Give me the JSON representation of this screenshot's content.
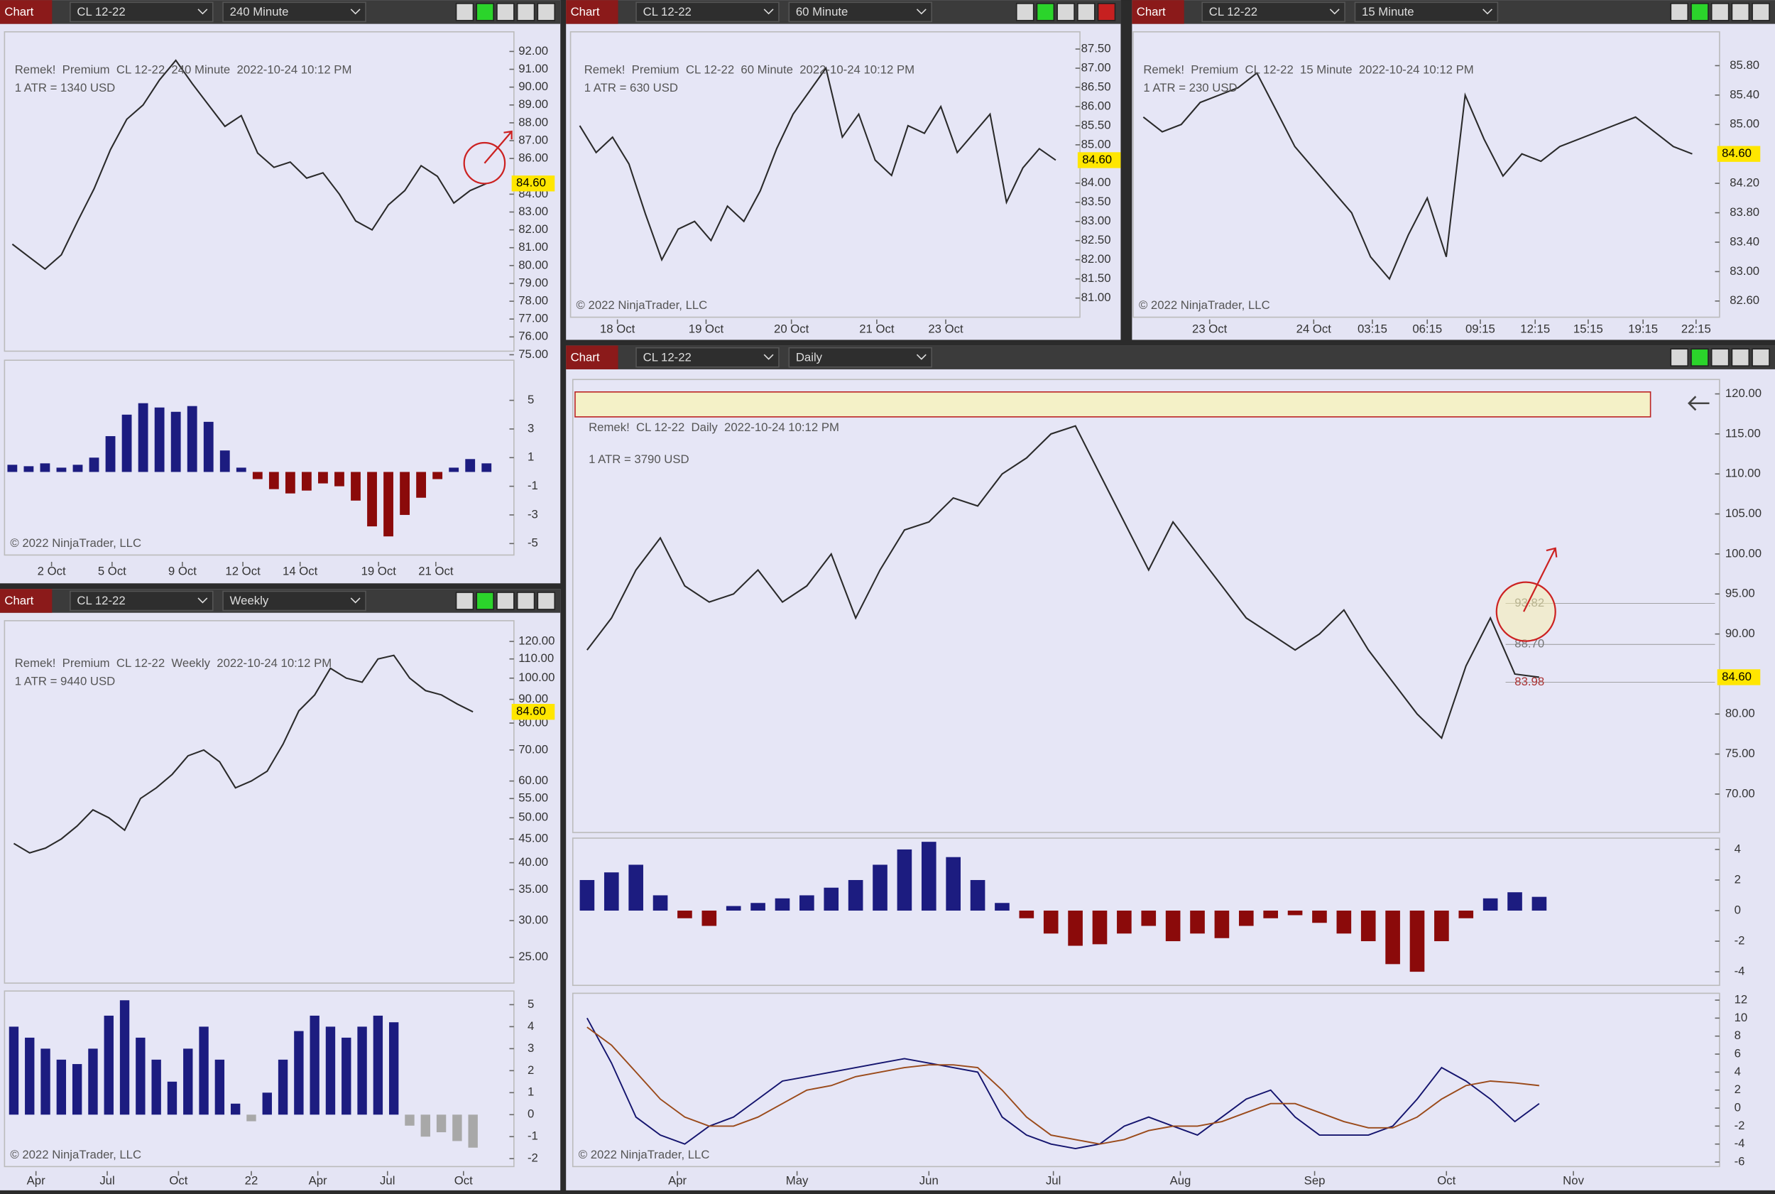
{
  "windows": [
    {
      "tab": "Chart",
      "instrument": "CL 12-22",
      "interval": "240 Minute",
      "header": "Remek!  Premium  CL 12-22  240 Minute  2022-10-24 10:12 PM",
      "atr": "1 ATR = 1340 USD",
      "copyright": "© 2022 NinjaTrader, LLC",
      "chart_data": {
        "type": "line",
        "color": "#2a2a2a",
        "xlim": [
          -0.2,
          30.4
        ],
        "ylim": [
          75.2,
          93.1
        ],
        "yticks": [
          {
            "value": 92,
            "label": "92.00"
          },
          {
            "value": 91,
            "label": "91.00"
          },
          {
            "value": 90,
            "label": "90.00"
          },
          {
            "value": 89,
            "label": "89.00"
          },
          {
            "value": 88,
            "label": "88.00"
          },
          {
            "value": 87,
            "label": "87.00"
          },
          {
            "value": 86,
            "label": "86.00"
          },
          {
            "value": 84,
            "label": "84.00"
          },
          {
            "value": 83,
            "label": "83.00"
          },
          {
            "value": 82,
            "label": "82.00"
          },
          {
            "value": 81,
            "label": "81.00"
          },
          {
            "value": 80,
            "label": "80.00"
          },
          {
            "value": 79,
            "label": "79.00"
          },
          {
            "value": 78,
            "label": "78.00"
          },
          {
            "value": 77,
            "label": "77.00"
          },
          {
            "value": 76,
            "label": "76.00"
          },
          {
            "value": 75,
            "label": "75.00"
          }
        ],
        "xticks": [
          {
            "value": 2.4,
            "label": "2 Oct"
          },
          {
            "value": 6.1,
            "label": "5 Oct"
          },
          {
            "value": 10.4,
            "label": "9 Oct"
          },
          {
            "value": 14.1,
            "label": "12 Oct"
          },
          {
            "value": 17.6,
            "label": "14 Oct"
          },
          {
            "value": 22.4,
            "label": "19 Oct"
          },
          {
            "value": 25.9,
            "label": "21 Oct"
          }
        ],
        "values": [
          81.2,
          80.5,
          79.8,
          80.6,
          82.5,
          84.3,
          86.5,
          88.2,
          89.0,
          90.4,
          91.5,
          90.2,
          89.0,
          87.8,
          88.4,
          86.3,
          85.5,
          85.8,
          84.9,
          85.2,
          84.0,
          82.5,
          82.0,
          83.4,
          84.2,
          85.6,
          85.0,
          83.5,
          84.2,
          84.6
        ],
        "last_price": {
          "value": 84.6,
          "label": "84.60"
        },
        "oscillators": [
          {
            "type": "histogram",
            "ylim": [
              -5.8,
              7.8
            ],
            "yticks": [
              5,
              3,
              1,
              -1,
              -3,
              -5
            ],
            "color": "#1c1c80",
            "negative_color": "#8b0a0a",
            "values": [
              0.5,
              0.4,
              0.6,
              0.3,
              0.5,
              1,
              2.5,
              4,
              4.8,
              4.5,
              4.2,
              4.6,
              3.5,
              1.5,
              0.3,
              -0.5,
              -1.2,
              -1.5,
              -1.3,
              -0.8,
              -1.0,
              -2,
              -3.8,
              -4.5,
              -3,
              -1.8,
              -0.5,
              0.3,
              0.9,
              0.6
            ]
          }
        ]
      }
    },
    {
      "tab": "Chart",
      "instrument": "CL 12-22",
      "interval": "60 Minute",
      "header": "Remek!  Premium  CL 12-22  60 Minute  2022-10-24 10:12 PM",
      "atr": "1 ATR = 630 USD",
      "copyright": "© 2022 NinjaTrader, LLC",
      "chart_data": {
        "type": "line",
        "color": "#2a2a2a",
        "xlim": [
          -0.28,
          30.2
        ],
        "ylim": [
          80.5,
          87.95
        ],
        "yticks": [
          {
            "value": 87.5,
            "label": "87.50"
          },
          {
            "value": 87,
            "label": "87.00"
          },
          {
            "value": 86.5,
            "label": "86.50"
          },
          {
            "value": 86,
            "label": "86.00"
          },
          {
            "value": 85.5,
            "label": "85.50"
          },
          {
            "value": 85,
            "label": "85.00"
          },
          {
            "value": 84,
            "label": "84.00"
          },
          {
            "value": 83.5,
            "label": "83.50"
          },
          {
            "value": 83,
            "label": "83.00"
          },
          {
            "value": 82.5,
            "label": "82.50"
          },
          {
            "value": 82,
            "label": "82.00"
          },
          {
            "value": 81.5,
            "label": "81.50"
          },
          {
            "value": 81,
            "label": "81.00"
          }
        ],
        "xticks": [
          {
            "value": 2.3,
            "label": "18 Oct"
          },
          {
            "value": 7.7,
            "label": "19 Oct"
          },
          {
            "value": 12.9,
            "label": "20 Oct"
          },
          {
            "value": 18.1,
            "label": "21 Oct"
          },
          {
            "value": 22.3,
            "label": "23 Oct"
          }
        ],
        "values": [
          85.5,
          84.8,
          85.2,
          84.5,
          83.2,
          82.0,
          82.8,
          83.0,
          82.5,
          83.4,
          83.0,
          83.8,
          84.9,
          85.8,
          86.4,
          87.0,
          85.2,
          85.8,
          84.6,
          84.2,
          85.5,
          85.3,
          86.0,
          84.8,
          85.3,
          85.8,
          83.5,
          84.4,
          84.9,
          84.6
        ],
        "last_price": {
          "value": 84.6,
          "label": "84.60"
        },
        "oscillators": []
      }
    },
    {
      "tab": "Chart",
      "instrument": "CL 12-22",
      "interval": "15 Minute",
      "header": "Remek!  Premium  CL 12-22  15 Minute  2022-10-24 10:12 PM",
      "atr": "1 ATR = 230 USD",
      "copyright": "© 2022 NinjaTrader, LLC",
      "chart_data": {
        "type": "line",
        "color": "#2a2a2a",
        "xlim": [
          -0.3,
          30.2
        ],
        "ylim": [
          82.38,
          86.26
        ],
        "yticks": [
          {
            "value": 85.8,
            "label": "85.80"
          },
          {
            "value": 85.4,
            "label": "85.40"
          },
          {
            "value": 85,
            "label": "85.00"
          },
          {
            "value": 84.2,
            "label": "84.20"
          },
          {
            "value": 83.8,
            "label": "83.80"
          },
          {
            "value": 83.4,
            "label": "83.40"
          },
          {
            "value": 83,
            "label": "83.00"
          },
          {
            "value": 82.6,
            "label": "82.60"
          }
        ],
        "xticks": [
          {
            "value": 3.5,
            "label": "23 Oct"
          },
          {
            "value": 9.0,
            "label": "24 Oct"
          },
          {
            "value": 12.1,
            "label": "03:15"
          },
          {
            "value": 15.0,
            "label": "06:15"
          },
          {
            "value": 17.8,
            "label": "09:15"
          },
          {
            "value": 20.7,
            "label": "12:15"
          },
          {
            "value": 23.5,
            "label": "15:15"
          },
          {
            "value": 26.4,
            "label": "19:15"
          },
          {
            "value": 29.2,
            "label": "22:15"
          }
        ],
        "values": [
          85.1,
          84.9,
          85.0,
          85.3,
          85.4,
          85.5,
          85.7,
          85.2,
          84.7,
          84.4,
          84.1,
          83.8,
          83.2,
          82.9,
          83.5,
          84.0,
          83.2,
          85.4,
          84.8,
          84.3,
          84.6,
          84.5,
          84.7,
          84.8,
          84.9,
          85.0,
          85.1,
          84.9,
          84.7,
          84.6
        ],
        "last_price": {
          "value": 84.6,
          "label": "84.60"
        },
        "oscillators": []
      }
    },
    {
      "tab": "Chart",
      "instrument": "CL 12-22",
      "interval": "Weekly",
      "header": "Remek!  Premium  CL 12-22  Weekly  2022-10-24 10:12 PM",
      "atr": "1 ATR = 9440 USD",
      "copyright": "© 2022 NinjaTrader, LLC",
      "chart_data": {
        "type": "line",
        "color": "#2a2a2a",
        "log_scale": true,
        "xlim": [
          -0.3,
          31.3
        ],
        "ylim": [
          22,
          133
        ],
        "yticks": [
          {
            "value": 120,
            "label": "120.00"
          },
          {
            "value": 110,
            "label": "110.00"
          },
          {
            "value": 100,
            "label": "100.00"
          },
          {
            "value": 90,
            "label": "90.00"
          },
          {
            "value": 80,
            "label": "80.00"
          },
          {
            "value": 70,
            "label": "70.00"
          },
          {
            "value": 60,
            "label": "60.00"
          },
          {
            "value": 55,
            "label": "55.00"
          },
          {
            "value": 50,
            "label": "50.00"
          },
          {
            "value": 45,
            "label": "45.00"
          },
          {
            "value": 40,
            "label": "40.00"
          },
          {
            "value": 35,
            "label": "35.00"
          },
          {
            "value": 30,
            "label": "30.00"
          },
          {
            "value": 25,
            "label": "25.00"
          }
        ],
        "xticks": [
          {
            "value": 1.4,
            "label": "Apr"
          },
          {
            "value": 5.9,
            "label": "Jul"
          },
          {
            "value": 10.4,
            "label": "Oct"
          },
          {
            "value": 15,
            "label": "22"
          },
          {
            "value": 19.2,
            "label": "Apr"
          },
          {
            "value": 23.6,
            "label": "Jul"
          },
          {
            "value": 28.4,
            "label": "Oct"
          }
        ],
        "values": [
          44,
          42,
          43,
          45,
          48,
          52,
          50,
          47,
          55,
          58,
          62,
          68,
          70,
          66,
          58,
          60,
          63,
          72,
          85,
          92,
          105,
          100,
          98,
          110,
          112,
          100,
          94,
          92,
          88,
          84.6
        ],
        "last_price": {
          "value": 84.6,
          "label": "84.60"
        },
        "oscillators": [
          {
            "type": "histogram",
            "ylim": [
              -2.36,
              5.62
            ],
            "yticks": [
              5,
              4,
              3,
              2,
              1,
              0,
              -1,
              -2
            ],
            "color": "#1c1c80",
            "negative_color": "#a8a8a8",
            "values": [
              4,
              3.5,
              3,
              2.5,
              2.3,
              3,
              4.5,
              5.2,
              3.5,
              2.5,
              1.5,
              3,
              4,
              2.5,
              0.5,
              -0.3,
              1,
              2.5,
              3.8,
              4.5,
              4,
              3.5,
              4,
              4.5,
              4.2,
              -0.5,
              -1,
              -0.8,
              -1.2,
              -1.5
            ]
          }
        ]
      }
    },
    {
      "tab": "Chart",
      "instrument": "CL 12-22",
      "interval": "Daily",
      "header": "Remek!  CL 12-22  Daily  2022-10-24 10:12 PM",
      "atr": "1 ATR = 3790 USD",
      "copyright": "© 2022 NinjaTrader, LLC",
      "chart_data": {
        "type": "line",
        "color": "#2a2a2a",
        "xlim": [
          -0.4,
          46.2
        ],
        "ylim": [
          65.2,
          121.8
        ],
        "yticks": [
          {
            "value": 120,
            "label": "120.00"
          },
          {
            "value": 115,
            "label": "115.00"
          },
          {
            "value": 110,
            "label": "110.00"
          },
          {
            "value": 105,
            "label": "105.00"
          },
          {
            "value": 100,
            "label": "100.00"
          },
          {
            "value": 95,
            "label": "95.00"
          },
          {
            "value": 90,
            "label": "90.00"
          },
          {
            "value": 80,
            "label": "80.00"
          },
          {
            "value": 75,
            "label": "75.00"
          },
          {
            "value": 70,
            "label": "70.00"
          }
        ],
        "xticks": [
          {
            "value": 3.7,
            "label": "Apr"
          },
          {
            "value": 8.6,
            "label": "May"
          },
          {
            "value": 14,
            "label": "Jun"
          },
          {
            "value": 19.1,
            "label": "Jul"
          },
          {
            "value": 24.3,
            "label": "Aug"
          },
          {
            "value": 29.8,
            "label": "Sep"
          },
          {
            "value": 35.2,
            "label": "Oct"
          },
          {
            "value": 40.4,
            "label": "Nov"
          }
        ],
        "values": [
          88,
          92,
          98,
          102,
          96,
          94,
          95,
          98,
          94,
          96,
          100,
          92,
          98,
          103,
          104,
          107,
          106,
          110,
          112,
          115,
          116,
          110,
          104,
          98,
          104,
          100,
          96,
          92,
          90,
          88,
          90,
          93,
          88,
          84,
          80,
          77,
          86,
          92,
          85,
          84.6
        ],
        "last_price": {
          "value": 84.6,
          "label": "84.60"
        },
        "levels": [
          {
            "value": 93.82,
            "label": "93.82"
          },
          {
            "value": 88.7,
            "label": "88.70"
          },
          {
            "value": 83.98,
            "label": "83.98"
          }
        ],
        "oscillators": [
          {
            "type": "histogram",
            "ylim": [
              -4.89,
              4.74
            ],
            "yticks": [
              4,
              2,
              0,
              -2,
              -4
            ],
            "color": "#1c1c80",
            "negative_color": "#8b0a0a",
            "values": [
              2,
              2.5,
              3,
              1,
              -0.5,
              -1,
              0.3,
              0.5,
              0.8,
              1,
              1.5,
              2,
              3,
              4,
              4.5,
              3.5,
              2,
              0.5,
              -0.5,
              -1.5,
              -2.3,
              -2.2,
              -1.5,
              -1,
              -2,
              -1.5,
              -1.8,
              -1,
              -0.5,
              -0.3,
              -0.8,
              -1.5,
              -2,
              -3.5,
              -4,
              -2,
              -0.5,
              0.8,
              1.2,
              0.9
            ]
          },
          {
            "type": "line",
            "ylim": [
              -6.5,
              12.76
            ],
            "yticks": [
              12,
              10,
              8,
              6,
              4,
              2,
              0,
              -2,
              -4,
              -6
            ],
            "series": [
              {
                "color": "#14146e",
                "values": [
                  10,
                  5,
                  -1,
                  -3,
                  -4,
                  -2,
                  -1,
                  1,
                  3,
                  3.5,
                  4,
                  4.5,
                  5,
                  5.5,
                  5,
                  4.5,
                  4,
                  -1,
                  -3,
                  -4,
                  -4.5,
                  -4,
                  -2,
                  -1,
                  -2,
                  -3,
                  -1,
                  1,
                  2,
                  -1,
                  -3,
                  -3,
                  -3,
                  -2,
                  1,
                  4.5,
                  3,
                  1,
                  -1.5,
                  0.5
                ]
              },
              {
                "color": "#9a4a1a",
                "values": [
                  9,
                  7,
                  4,
                  1,
                  -1,
                  -2,
                  -2,
                  -1,
                  0.5,
                  2,
                  2.5,
                  3.5,
                  4,
                  4.5,
                  4.8,
                  4.8,
                  4.5,
                  2,
                  -1,
                  -3,
                  -3.5,
                  -4,
                  -3.5,
                  -2.5,
                  -2,
                  -2,
                  -1.5,
                  -0.5,
                  0.5,
                  0.5,
                  -0.5,
                  -1.5,
                  -2.2,
                  -2.2,
                  -1,
                  1,
                  2.5,
                  3,
                  2.8,
                  2.5
                ]
              }
            ]
          }
        ]
      }
    }
  ]
}
